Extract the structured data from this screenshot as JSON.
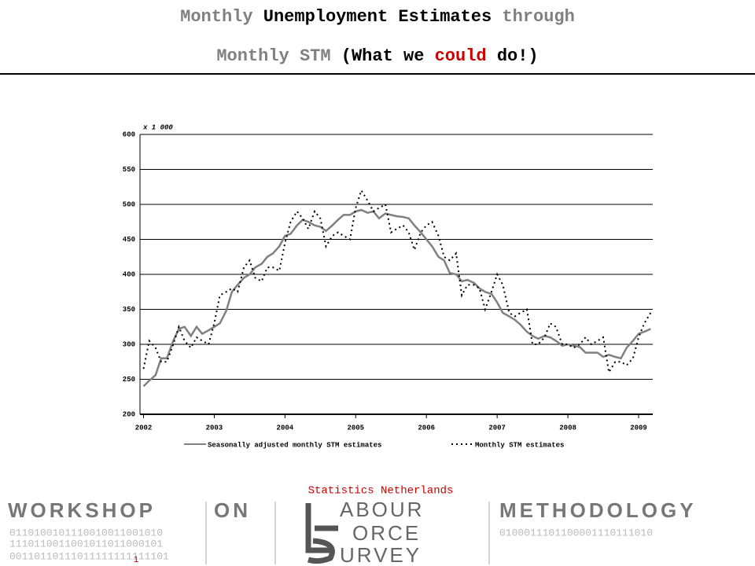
{
  "slide": {
    "title_lines": [
      [
        {
          "text": "Monthly ",
          "color": "#808080"
        },
        {
          "text": "Unemployment Estimates ",
          "color": "#000000"
        },
        {
          "text": "through",
          "color": "#808080"
        }
      ],
      [
        {
          "text": "Monthly STM ",
          "color": "#808080"
        },
        {
          "text": "(What we ",
          "color": "#000000"
        },
        {
          "text": "could",
          "color": "#cc0000"
        },
        {
          "text": " do!)",
          "color": "#000000"
        }
      ]
    ],
    "source": "Statistics Netherlands",
    "page_number": "1",
    "banner": {
      "left": "WORKSHOP",
      "middle": "ON",
      "right": "METHODOLOGY",
      "logo_lines": [
        "ABOUR",
        "ORCE",
        "URVEY"
      ],
      "binary": [
        "0110100101110010011001010",
        "1110110011001011011000101",
        "0100011101100001110111010",
        "00110110111011111111111101"
      ]
    }
  },
  "chart_data": {
    "type": "line",
    "unit_label": "x 1 000",
    "xlim": [
      2001.95,
      2009.2
    ],
    "xticks": [
      2002,
      2003,
      2004,
      2005,
      2006,
      2007,
      2008,
      2009
    ],
    "ylim": [
      200,
      600
    ],
    "yticks": [
      200,
      250,
      300,
      350,
      400,
      450,
      500,
      550,
      600
    ],
    "grid": true,
    "x": [
      2002,
      2002.08,
      2002.17,
      2002.25,
      2002.33,
      2002.42,
      2002.5,
      2002.58,
      2002.67,
      2002.75,
      2002.83,
      2002.92,
      2003,
      2003.08,
      2003.17,
      2003.25,
      2003.33,
      2003.42,
      2003.5,
      2003.58,
      2003.67,
      2003.75,
      2003.83,
      2003.92,
      2004,
      2004.08,
      2004.17,
      2004.25,
      2004.33,
      2004.42,
      2004.5,
      2004.58,
      2004.67,
      2004.75,
      2004.83,
      2004.92,
      2005,
      2005.08,
      2005.17,
      2005.25,
      2005.33,
      2005.42,
      2005.5,
      2005.58,
      2005.67,
      2005.75,
      2005.83,
      2005.92,
      2006,
      2006.08,
      2006.17,
      2006.25,
      2006.33,
      2006.42,
      2006.5,
      2006.58,
      2006.67,
      2006.75,
      2006.83,
      2006.92,
      2007,
      2007.08,
      2007.17,
      2007.25,
      2007.33,
      2007.42,
      2007.5,
      2007.58,
      2007.67,
      2007.75,
      2007.83,
      2007.92,
      2008,
      2008.08,
      2008.17,
      2008.25,
      2008.33,
      2008.42,
      2008.5,
      2008.58,
      2008.67,
      2008.75,
      2008.83,
      2008.92,
      2009,
      2009.08,
      2009.17
    ],
    "series": [
      {
        "name": "Seasonally adjusted monthly STM estimates",
        "color": "#808080",
        "dash": "none",
        "values": [
          240,
          248,
          256,
          280,
          280,
          305,
          322,
          325,
          312,
          325,
          315,
          320,
          325,
          330,
          348,
          375,
          385,
          395,
          400,
          410,
          415,
          425,
          430,
          440,
          455,
          458,
          470,
          478,
          475,
          470,
          468,
          462,
          470,
          478,
          485,
          485,
          490,
          492,
          488,
          490,
          480,
          487,
          485,
          483,
          482,
          480,
          470,
          460,
          450,
          440,
          425,
          420,
          402,
          400,
          390,
          392,
          388,
          380,
          375,
          372,
          360,
          345,
          340,
          335,
          328,
          318,
          312,
          308,
          312,
          310,
          305,
          298,
          300,
          298,
          296,
          288,
          288,
          288,
          282,
          285,
          282,
          280,
          295,
          305,
          315,
          318,
          322
        ]
      },
      {
        "name": "Monthly STM estimates",
        "color": "#000000",
        "dash": "2,4",
        "values": [
          265,
          305,
          295,
          275,
          275,
          300,
          325,
          305,
          295,
          310,
          305,
          300,
          330,
          370,
          375,
          380,
          375,
          410,
          420,
          395,
          390,
          410,
          410,
          405,
          445,
          475,
          490,
          480,
          465,
          490,
          480,
          440,
          455,
          460,
          455,
          450,
          495,
          520,
          505,
          490,
          495,
          500,
          460,
          465,
          470,
          460,
          435,
          460,
          470,
          475,
          455,
          425,
          420,
          430,
          370,
          385,
          385,
          380,
          350,
          375,
          400,
          385,
          345,
          340,
          345,
          350,
          300,
          300,
          310,
          330,
          325,
          300,
          300,
          295,
          300,
          310,
          300,
          305,
          310,
          260,
          275,
          275,
          270,
          280,
          310,
          330,
          345
        ]
      }
    ]
  }
}
